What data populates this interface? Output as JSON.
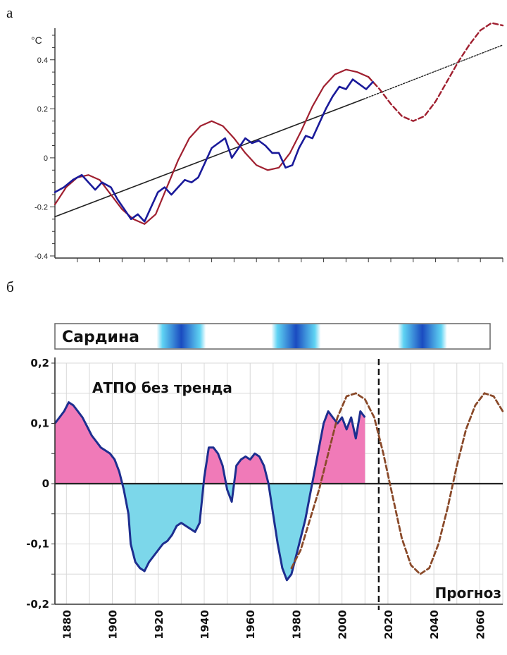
{
  "panel_a": {
    "letter": "а",
    "chart_data": {
      "type": "line",
      "unit_label": "°C",
      "ylim": [
        -0.4,
        0.5
      ],
      "xlim": [
        1870,
        2070
      ],
      "y_ticks": [
        "0.4",
        "0.2",
        "0",
        "-0.2",
        "-0.4"
      ],
      "colors": {
        "observed": "#1a1a9a",
        "model": "#a02030",
        "trend": "#222222"
      },
      "series": [
        {
          "style": "blue-solid",
          "x": [
            1870,
            1874,
            1878,
            1882,
            1885,
            1888,
            1891,
            1895,
            1898,
            1901,
            1904,
            1907,
            1910,
            1913,
            1916,
            1919,
            1922,
            1925,
            1928,
            1931,
            1934,
            1937,
            1940,
            1943,
            1946,
            1949,
            1952,
            1955,
            1958,
            1961,
            1964,
            1967,
            1970,
            1973,
            1976,
            1979,
            1982,
            1985,
            1988,
            1991,
            1994,
            1997,
            2000,
            2003,
            2006,
            2009,
            2012
          ],
          "y": [
            -0.14,
            -0.12,
            -0.09,
            -0.07,
            -0.1,
            -0.13,
            -0.1,
            -0.12,
            -0.17,
            -0.21,
            -0.25,
            -0.23,
            -0.26,
            -0.2,
            -0.14,
            -0.12,
            -0.15,
            -0.12,
            -0.09,
            -0.1,
            -0.08,
            -0.02,
            0.04,
            0.06,
            0.08,
            0.0,
            0.04,
            0.08,
            0.06,
            0.07,
            0.05,
            0.02,
            0.02,
            -0.04,
            -0.03,
            0.04,
            0.09,
            0.08,
            0.14,
            0.2,
            0.25,
            0.29,
            0.28,
            0.32,
            0.3,
            0.28,
            0.31
          ]
        },
        {
          "style": "red-solid",
          "x": [
            1870,
            1875,
            1880,
            1885,
            1890,
            1895,
            1900,
            1905,
            1910,
            1915,
            1920,
            1925,
            1930,
            1935,
            1940,
            1945,
            1950,
            1955,
            1960,
            1965,
            1970,
            1975,
            1980,
            1985,
            1990,
            1995,
            2000,
            2005,
            2010
          ],
          "y": [
            -0.19,
            -0.12,
            -0.08,
            -0.07,
            -0.09,
            -0.15,
            -0.21,
            -0.25,
            -0.27,
            -0.23,
            -0.12,
            -0.01,
            0.08,
            0.13,
            0.15,
            0.13,
            0.08,
            0.02,
            -0.03,
            -0.05,
            -0.04,
            0.02,
            0.11,
            0.21,
            0.29,
            0.34,
            0.36,
            0.35,
            0.33
          ]
        },
        {
          "style": "red-dashed",
          "x": [
            2010,
            2015,
            2020,
            2025,
            2030,
            2035,
            2040,
            2045,
            2050,
            2055,
            2060,
            2065,
            2070
          ],
          "y": [
            0.33,
            0.28,
            0.22,
            0.17,
            0.15,
            0.17,
            0.23,
            0.31,
            0.39,
            0.46,
            0.52,
            0.55,
            0.54
          ]
        },
        {
          "style": "black-trend",
          "x": [
            1870,
            2008
          ],
          "y": [
            -0.24,
            0.24
          ]
        },
        {
          "style": "black-trend-dotted",
          "x": [
            2008,
            2070
          ],
          "y": [
            0.24,
            0.46
          ]
        }
      ]
    }
  },
  "panel_b": {
    "letter": "б",
    "sardina_label": "Сардина",
    "chart_data": {
      "type": "area",
      "title": "АТПО без тренда",
      "annotation": "Прогноз",
      "ylim": [
        -0.2,
        0.2
      ],
      "xlim": [
        1875,
        2070
      ],
      "forecast_x": 2016,
      "y_ticks": [
        "0,2",
        "0,1",
        "0",
        "-0,1",
        "-0,2"
      ],
      "x_ticks": [
        "1880",
        "1900",
        "1920",
        "1940",
        "1960",
        "1980",
        "2000",
        "2020",
        "2040",
        "2060"
      ],
      "sardina_peaks": [
        1930,
        1980,
        2035
      ],
      "colors": {
        "positive": "#f07ab8",
        "negative": "#7cd7ea",
        "line": "#1d2e8f",
        "forecast": "#8a4a2a",
        "band": "#1a4bc0"
      },
      "series": [
        {
          "style": "blue-area",
          "x": [
            1875,
            1877,
            1879,
            1881,
            1883,
            1885,
            1887,
            1889,
            1891,
            1893,
            1895,
            1897,
            1899,
            1901,
            1903,
            1905,
            1907,
            1908,
            1910,
            1912,
            1914,
            1916,
            1918,
            1920,
            1922,
            1924,
            1926,
            1928,
            1930,
            1932,
            1934,
            1936,
            1938,
            1940,
            1942,
            1944,
            1946,
            1948,
            1950,
            1952,
            1954,
            1956,
            1958,
            1960,
            1962,
            1964,
            1966,
            1968,
            1970,
            1972,
            1974,
            1976,
            1978,
            1980,
            1982,
            1984,
            1986,
            1988,
            1990,
            1992,
            1994,
            1996,
            1998,
            2000,
            2002,
            2004,
            2006,
            2008,
            2010
          ],
          "y": [
            0.1,
            0.11,
            0.12,
            0.135,
            0.13,
            0.12,
            0.11,
            0.095,
            0.08,
            0.07,
            0.06,
            0.055,
            0.05,
            0.04,
            0.02,
            -0.01,
            -0.05,
            -0.1,
            -0.13,
            -0.14,
            -0.145,
            -0.13,
            -0.12,
            -0.11,
            -0.1,
            -0.095,
            -0.085,
            -0.07,
            -0.065,
            -0.07,
            -0.075,
            -0.08,
            -0.065,
            0.01,
            0.06,
            0.06,
            0.05,
            0.03,
            -0.01,
            -0.03,
            0.03,
            0.04,
            0.045,
            0.04,
            0.05,
            0.045,
            0.03,
            0.0,
            -0.05,
            -0.1,
            -0.14,
            -0.16,
            -0.15,
            -0.12,
            -0.09,
            -0.06,
            -0.02,
            0.02,
            0.06,
            0.1,
            0.12,
            0.11,
            0.1,
            0.11,
            0.09,
            0.11,
            0.075,
            0.12,
            0.11
          ]
        },
        {
          "style": "dashed-model",
          "x": [
            1978,
            1982,
            1986,
            1990,
            1994,
            1998,
            2002,
            2006,
            2010,
            2014,
            2018,
            2022,
            2026,
            2030,
            2034,
            2038,
            2042,
            2046,
            2050,
            2054,
            2058,
            2062,
            2066,
            2070
          ],
          "y": [
            -0.14,
            -0.11,
            -0.06,
            -0.01,
            0.05,
            0.11,
            0.145,
            0.15,
            0.14,
            0.11,
            0.05,
            -0.02,
            -0.09,
            -0.135,
            -0.15,
            -0.14,
            -0.1,
            -0.04,
            0.03,
            0.09,
            0.13,
            0.15,
            0.145,
            0.12
          ]
        }
      ]
    }
  }
}
